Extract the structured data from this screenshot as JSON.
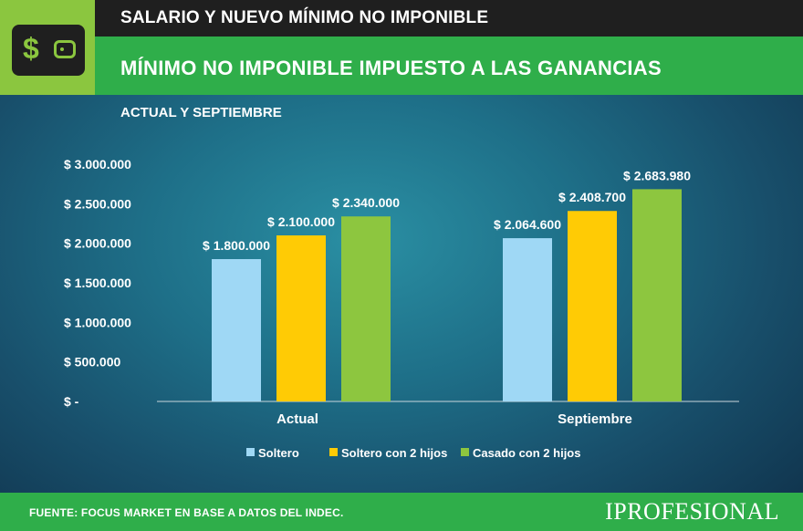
{
  "header": {
    "title": "SALARIO Y NUEVO MÍNIMO NO IMPONIBLE",
    "icon": "wallet-dollar-icon",
    "icon_symbol": "$"
  },
  "main": {
    "title": "MÍNIMO NO IMPONIBLE IMPUESTO A LAS GANANCIAS",
    "subtitle": "ACTUAL Y SEPTIEMBRE"
  },
  "chart_data": {
    "type": "bar",
    "categories": [
      "Actual",
      "Septiembre"
    ],
    "series": [
      {
        "name": "Soltero",
        "values": [
          1800000,
          2064600
        ],
        "labels": [
          "$ 1.800.000",
          "$ 2.064.600"
        ],
        "color": "#9fd8f5"
      },
      {
        "name": "Soltero con 2 hijos",
        "values": [
          2100000,
          2408700
        ],
        "labels": [
          "$ 2.100.000",
          "$ 2.408.700"
        ],
        "color": "#ffcb05"
      },
      {
        "name": "Casado con 2 hijos",
        "values": [
          2340000,
          2683980
        ],
        "labels": [
          "$ 2.340.000",
          "$ 2.683.980"
        ],
        "color": "#8dc63f"
      }
    ],
    "yticks": [
      "$ -",
      "$ 500.000",
      "$ 1.000.000",
      "$ 1.500.000",
      "$ 2.000.000",
      "$ 2.500.000",
      "$ 3.000.000"
    ],
    "ylim": [
      0,
      3000000
    ],
    "legend_position": "bottom",
    "grid": false
  },
  "footer": {
    "source": "FUENTE: FOCUS MARKET EN BASE A DATOS DEL INDEC.",
    "brand": "IPROFESIONAL"
  }
}
